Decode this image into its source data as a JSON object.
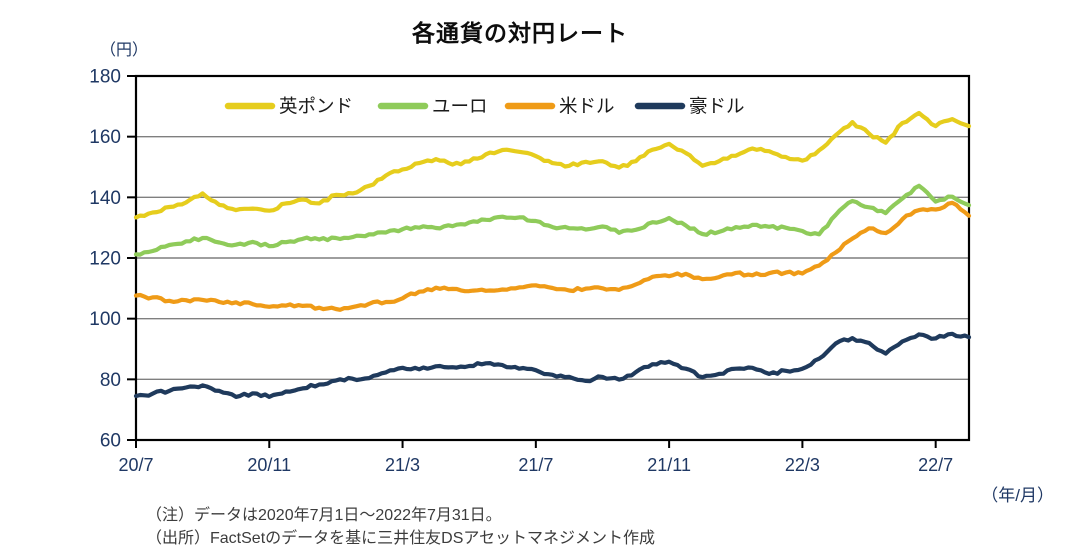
{
  "title": "各通貨の対円レート",
  "y_axis": {
    "unit_label": "（円）",
    "min": 60,
    "max": 180,
    "step": 20,
    "tick_labels": [
      "180",
      "160",
      "140",
      "120",
      "100",
      "80",
      "60"
    ]
  },
  "x_axis": {
    "unit_label": "（年/月）",
    "tick_labels": [
      "20/7",
      "20/11",
      "21/3",
      "21/7",
      "21/11",
      "22/3",
      "22/7"
    ],
    "tick_months": [
      0,
      4,
      8,
      12,
      16,
      20,
      24
    ],
    "total_months": 25
  },
  "legend": {
    "position": "top-inside",
    "items": [
      {
        "label": "英ポンド",
        "color": "#e6cd1d"
      },
      {
        "label": "ユーロ",
        "color": "#8fcb5a"
      },
      {
        "label": "米ドル",
        "color": "#ef9b17"
      },
      {
        "label": "豪ドル",
        "color": "#1f3a5c"
      }
    ]
  },
  "notes": [
    "（注）データは2020年7月1日～2022年7月31日。",
    "（出所）FactSetのデータを基に三井住友DSアセットマネジメント作成"
  ],
  "colors": {
    "axis": "#000000",
    "grid": "#7f7f7f",
    "tick_text": "#1f3864",
    "legend_text": "#1a1a1a"
  },
  "chart_data": {
    "type": "line",
    "title": "各通貨の対円レート",
    "ylabel": "円",
    "xlabel": "年/月",
    "ylim": [
      60,
      180
    ],
    "grid": true,
    "legend_position": "top-inside",
    "date_range": "2020/7/1 - 2022/7/31",
    "visual_jitter_yen": 0.5,
    "x_months": [
      0,
      0.5,
      1,
      1.5,
      2,
      2.5,
      3,
      3.5,
      4,
      4.5,
      5,
      5.5,
      6,
      6.5,
      7,
      7.5,
      8,
      8.5,
      9,
      9.5,
      10,
      10.5,
      11,
      11.5,
      12,
      12.5,
      13,
      13.5,
      14,
      14.5,
      15,
      15.5,
      16,
      16.5,
      17,
      17.5,
      18,
      18.5,
      19,
      19.5,
      20,
      20.5,
      21,
      21.5,
      22,
      22.5,
      23,
      23.5,
      24,
      24.5,
      25
    ],
    "series": [
      {
        "key": "gbp",
        "name": "英ポンド",
        "color": "#e6cd1d",
        "values": [
          133.4,
          135.0,
          136.8,
          138.3,
          141.3,
          137.5,
          135.8,
          136.3,
          135.6,
          138.0,
          139.3,
          138.0,
          140.8,
          141.3,
          143.8,
          147.2,
          149.2,
          151.3,
          152.6,
          150.8,
          151.8,
          154.2,
          155.6,
          155.0,
          153.6,
          151.3,
          150.4,
          151.7,
          151.9,
          149.8,
          151.9,
          155.7,
          157.6,
          154.6,
          150.4,
          151.9,
          153.7,
          156.1,
          155.2,
          153.3,
          152.1,
          155.5,
          160.5,
          164.8,
          161.0,
          158.0,
          164.5,
          167.8,
          163.5,
          165.8,
          163.5
        ]
      },
      {
        "key": "eur",
        "name": "ユーロ",
        "color": "#8fcb5a",
        "values": [
          121.2,
          122.3,
          124.3,
          125.5,
          126.6,
          125.1,
          124.4,
          125.3,
          123.9,
          125.2,
          126.3,
          126.1,
          126.6,
          126.9,
          127.8,
          128.4,
          129.5,
          130.0,
          129.9,
          130.5,
          131.7,
          132.6,
          133.6,
          133.4,
          132.2,
          130.2,
          129.8,
          129.4,
          130.4,
          128.3,
          129.3,
          131.8,
          133.2,
          130.7,
          127.9,
          128.6,
          130.2,
          130.9,
          130.3,
          130.0,
          128.9,
          127.8,
          134.2,
          138.8,
          136.7,
          134.8,
          139.6,
          143.8,
          138.6,
          140.2,
          137.4
        ]
      },
      {
        "key": "usd",
        "name": "米ドル",
        "color": "#ef9b17",
        "values": [
          107.6,
          107.0,
          105.9,
          106.1,
          106.2,
          105.5,
          105.4,
          104.8,
          103.9,
          104.3,
          104.2,
          103.6,
          103.2,
          103.8,
          104.9,
          105.5,
          106.7,
          108.9,
          110.2,
          109.8,
          109.1,
          109.2,
          109.6,
          110.3,
          111.0,
          110.1,
          109.3,
          109.9,
          110.0,
          109.5,
          111.3,
          113.8,
          114.0,
          114.8,
          113.0,
          113.7,
          115.1,
          114.3,
          115.0,
          115.2,
          114.9,
          117.5,
          121.8,
          126.4,
          129.8,
          128.2,
          132.8,
          135.8,
          136.0,
          138.2,
          133.9
        ]
      },
      {
        "key": "aud",
        "name": "豪ドル",
        "color": "#1f3a5c",
        "values": [
          74.5,
          75.3,
          76.2,
          77.3,
          78.0,
          76.2,
          74.2,
          75.4,
          74.2,
          76.0,
          77.0,
          78.3,
          79.6,
          80.2,
          80.4,
          82.3,
          83.8,
          83.3,
          84.3,
          84.0,
          84.4,
          85.3,
          84.7,
          83.5,
          83.0,
          81.5,
          80.8,
          79.5,
          80.8,
          79.9,
          82.4,
          85.0,
          85.8,
          83.5,
          80.7,
          81.8,
          83.5,
          83.8,
          81.8,
          82.8,
          83.5,
          86.8,
          91.8,
          93.6,
          92.0,
          88.5,
          92.5,
          94.8,
          93.5,
          95.0,
          93.9
        ]
      }
    ]
  }
}
